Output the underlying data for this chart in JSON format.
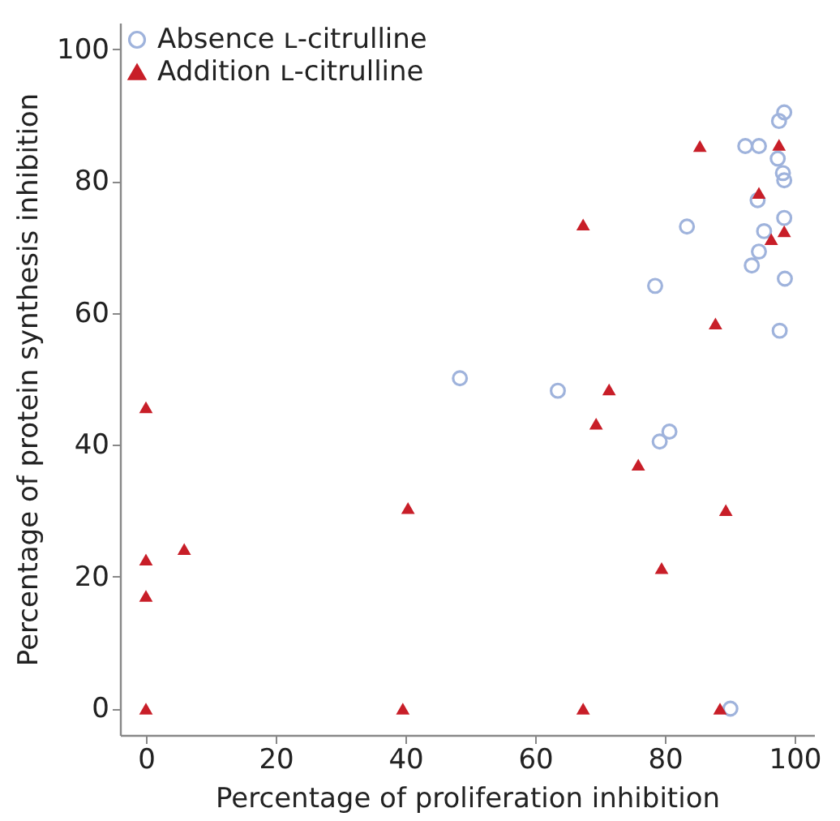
{
  "chart_data": {
    "type": "scatter",
    "xlabel": "Percentage of proliferation inhibition",
    "ylabel": "Percentage of protein synthesis inhibition",
    "xlim": [
      -4,
      103
    ],
    "ylim": [
      -4,
      104
    ],
    "xticks": [
      0,
      20,
      40,
      60,
      80,
      100
    ],
    "yticks": [
      0,
      20,
      40,
      60,
      80,
      100
    ],
    "grid": false,
    "legend": "top left",
    "series": [
      {
        "name": "Absence ʟ-citrulline",
        "color": "#9fb3dc",
        "marker": "circle",
        "x": [
          48.4,
          63.5,
          79.2,
          80.7,
          90.1,
          78.5,
          83.4,
          92.4,
          94.5,
          98.4,
          97.6,
          97.4,
          98.2,
          98.4,
          94.3,
          98.4,
          95.3,
          94.5,
          93.4,
          98.5,
          97.7
        ],
        "values": [
          50.1,
          48.2,
          40.5,
          42.0,
          0,
          64.1,
          73.1,
          85.3,
          85.3,
          90.4,
          89.1,
          83.4,
          81.2,
          80.1,
          77.1,
          74.4,
          72.4,
          69.3,
          67.2,
          65.2,
          57.3
        ]
      },
      {
        "name": "Addition ʟ-citrulline",
        "color": "#c81e28",
        "marker": "triangle",
        "x": [
          0,
          0,
          5.9,
          0,
          0,
          40.4,
          39.6,
          67.4,
          88.5,
          67.4,
          69.4,
          71.4,
          75.9,
          79.5,
          89.4,
          85.4,
          97.6,
          94.5,
          98.4,
          96.4,
          87.8
        ],
        "values": [
          45.7,
          22.6,
          24.2,
          17.1,
          0,
          30.4,
          0,
          0,
          0,
          73.4,
          43.2,
          48.4,
          37.0,
          21.3,
          30.1,
          85.3,
          85.5,
          78.2,
          72.4,
          71.2,
          58.4
        ]
      }
    ]
  }
}
